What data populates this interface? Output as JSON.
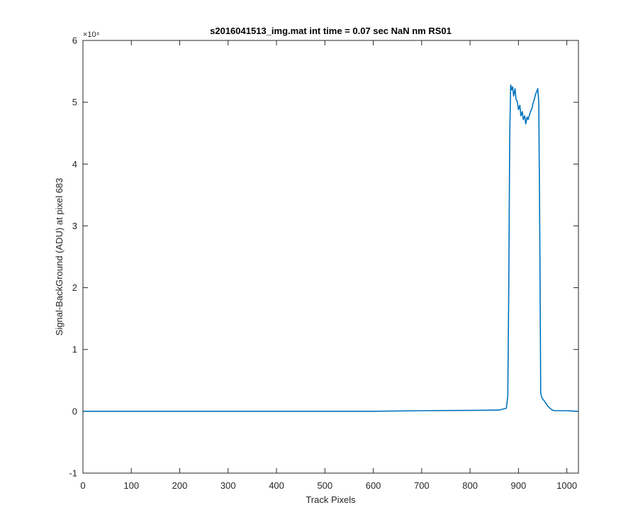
{
  "chart_data": {
    "type": "line",
    "title": "s2016041513_img.mat int time = 0.07 sec  NaN nm RS01",
    "xlabel": "Track Pixels",
    "ylabel": "Signal-BackGround (ADU) at pixel 683",
    "xlim": [
      0,
      1024
    ],
    "ylim": [
      -10000,
      60000
    ],
    "x_ticks": [
      "0",
      "100",
      "200",
      "300",
      "400",
      "500",
      "600",
      "700",
      "800",
      "900",
      "1000"
    ],
    "y_ticks": [
      "-1",
      "0",
      "1",
      "2",
      "3",
      "4",
      "5",
      "6"
    ],
    "y_exponent_label": "×10⁴",
    "grid": false,
    "legend": "none",
    "series": [
      {
        "color": "#0072BD",
        "x": [
          0,
          100,
          200,
          300,
          400,
          500,
          600,
          700,
          800,
          860,
          875,
          878,
          880,
          882,
          884,
          886,
          888,
          890,
          893,
          895,
          898,
          900,
          903,
          905,
          908,
          910,
          913,
          915,
          918,
          920,
          923,
          925,
          928,
          930,
          933,
          935,
          938,
          940,
          942,
          944,
          946,
          948,
          950,
          955,
          960,
          965,
          970,
          975,
          980,
          990,
          1000,
          1010,
          1020,
          1024
        ],
        "y": [
          0,
          0,
          0,
          0,
          0,
          0,
          0,
          100,
          150,
          200,
          500,
          2500,
          20000,
          45000,
          52800,
          52000,
          52500,
          51000,
          52200,
          50500,
          50000,
          48800,
          49500,
          47800,
          48500,
          47200,
          47800,
          46500,
          47600,
          47200,
          48000,
          48500,
          49000,
          49800,
          50500,
          51200,
          51800,
          52200,
          50000,
          30000,
          3000,
          2300,
          2000,
          1500,
          900,
          500,
          200,
          100,
          100,
          100,
          100,
          50,
          0,
          0
        ]
      }
    ]
  }
}
